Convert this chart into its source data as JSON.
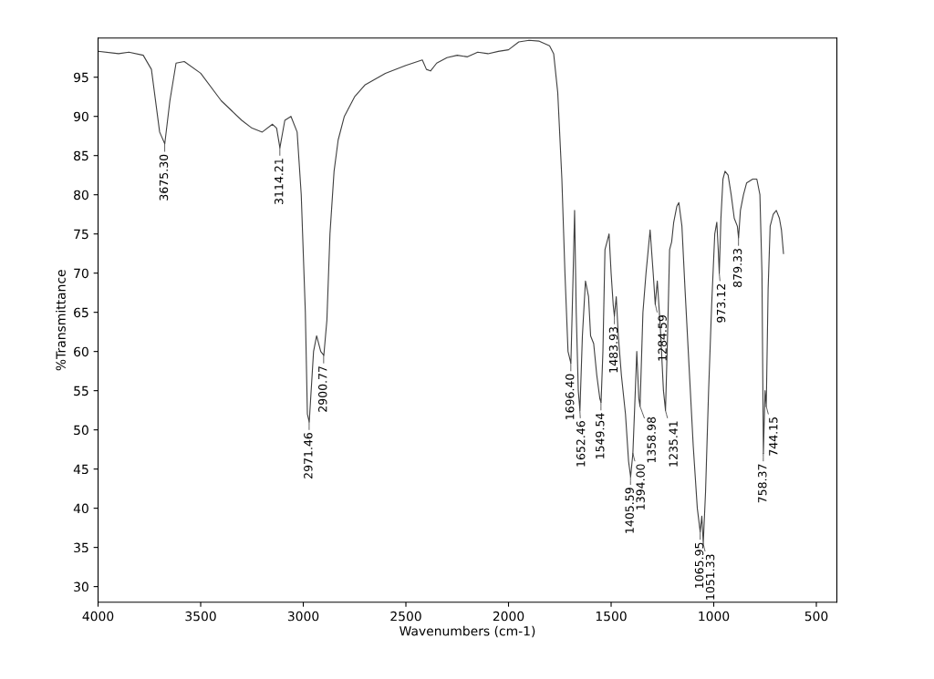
{
  "chart_data": {
    "type": "line",
    "xlabel": "Wavenumbers (cm-1)",
    "ylabel": "%Transmittance",
    "xlim": [
      4000,
      400
    ],
    "ylim": [
      28,
      100
    ],
    "xticks": [
      4000,
      3500,
      3000,
      2500,
      2000,
      1500,
      1000,
      500
    ],
    "yticks": [
      30,
      35,
      40,
      45,
      50,
      55,
      60,
      65,
      70,
      75,
      80,
      85,
      90,
      95
    ],
    "grid": false,
    "legend": false,
    "marker": "none",
    "line_style": "solid",
    "series": [
      {
        "color": "#404040",
        "x": [
          4000,
          3900,
          3850,
          3780,
          3740,
          3700,
          3675,
          3650,
          3620,
          3580,
          3500,
          3400,
          3300,
          3250,
          3200,
          3150,
          3130,
          3114,
          3090,
          3060,
          3030,
          3010,
          2990,
          2980,
          2971,
          2950,
          2935,
          2915,
          2900,
          2885,
          2870,
          2850,
          2830,
          2800,
          2750,
          2700,
          2600,
          2500,
          2420,
          2400,
          2380,
          2350,
          2300,
          2250,
          2200,
          2150,
          2100,
          2050,
          2000,
          1950,
          1900,
          1850,
          1800,
          1780,
          1760,
          1740,
          1725,
          1710,
          1696,
          1685,
          1678,
          1670,
          1660,
          1652,
          1640,
          1625,
          1610,
          1600,
          1585,
          1570,
          1555,
          1549,
          1540,
          1530,
          1520,
          1510,
          1500,
          1490,
          1484,
          1475,
          1465,
          1450,
          1430,
          1415,
          1405,
          1394,
          1385,
          1375,
          1365,
          1359,
          1345,
          1330,
          1310,
          1295,
          1285,
          1275,
          1260,
          1245,
          1235,
          1225,
          1215,
          1205,
          1195,
          1180,
          1170,
          1155,
          1140,
          1120,
          1100,
          1080,
          1066,
          1058,
          1051,
          1040,
          1025,
          1010,
          995,
          985,
          978,
          973,
          965,
          955,
          945,
          930,
          915,
          900,
          885,
          879,
          870,
          855,
          840,
          810,
          790,
          775,
          765,
          758,
          750,
          744,
          735,
          725,
          710,
          695,
          680,
          670,
          660
        ],
        "values": [
          98.3,
          98.0,
          98.2,
          97.8,
          96,
          88,
          86.5,
          92,
          96.8,
          97.0,
          95.5,
          92,
          89.5,
          88.5,
          88.0,
          89.0,
          88.5,
          86,
          89.5,
          90.0,
          88,
          80,
          65,
          52,
          51,
          60,
          62,
          60,
          59.5,
          64,
          75,
          83,
          87,
          90,
          92.5,
          94,
          95.5,
          96.5,
          97.2,
          96,
          95.8,
          96.8,
          97.5,
          97.8,
          97.6,
          98.2,
          98.0,
          98.3,
          98.5,
          99.5,
          99.7,
          99.6,
          99.0,
          98,
          93,
          82,
          70,
          60,
          58.5,
          70,
          78,
          65,
          55,
          52.5,
          62,
          69,
          67,
          62,
          61,
          57,
          54,
          53.5,
          60,
          73,
          74,
          75,
          70,
          66,
          64.5,
          67,
          62,
          57,
          52,
          46,
          44,
          47,
          53,
          60,
          54,
          53,
          65,
          70,
          75.5,
          70,
          66,
          69,
          63,
          55,
          52.5,
          62,
          73,
          74,
          76.5,
          78.5,
          79,
          76,
          68,
          58,
          48,
          40,
          37,
          39,
          35.5,
          42,
          55,
          66,
          75,
          76.5,
          73,
          70,
          77,
          82,
          83,
          82.5,
          80,
          77,
          76,
          74.5,
          78,
          80,
          81.5,
          82,
          82,
          80,
          70,
          47,
          55,
          53,
          68,
          76,
          77.5,
          78,
          77,
          75.5,
          72.5
        ]
      }
    ],
    "annotations": [
      {
        "text": "3675.30",
        "x": 3675.3,
        "y": 86.5
      },
      {
        "text": "3114.21",
        "x": 3114.21,
        "y": 86
      },
      {
        "text": "2971.46",
        "x": 2971.46,
        "y": 51
      },
      {
        "text": "2900.77",
        "x": 2900.77,
        "y": 59.5
      },
      {
        "text": "1696.40",
        "x": 1696.4,
        "y": 58.5
      },
      {
        "text": "1652.46",
        "x": 1652.46,
        "y": 52.5
      },
      {
        "text": "1549.54",
        "x": 1549.54,
        "y": 53.5
      },
      {
        "text": "1483.93",
        "x": 1483.93,
        "y": 64.5
      },
      {
        "text": "1405.59",
        "x": 1405.59,
        "y": 44
      },
      {
        "text": "1394.00",
        "x": 1394.0,
        "y": 47
      },
      {
        "text": "1358.98",
        "x": 1358.98,
        "y": 53
      },
      {
        "text": "1284.59",
        "x": 1284.59,
        "y": 66
      },
      {
        "text": "1235.41",
        "x": 1235.41,
        "y": 52.5
      },
      {
        "text": "1065.95",
        "x": 1065.95,
        "y": 37
      },
      {
        "text": "1051.33",
        "x": 1051.33,
        "y": 35.5
      },
      {
        "text": "973.12",
        "x": 973.12,
        "y": 70
      },
      {
        "text": "879.33",
        "x": 879.33,
        "y": 74.5
      },
      {
        "text": "758.37",
        "x": 758.37,
        "y": 47
      },
      {
        "text": "744.15",
        "x": 744.15,
        "y": 53
      }
    ]
  }
}
